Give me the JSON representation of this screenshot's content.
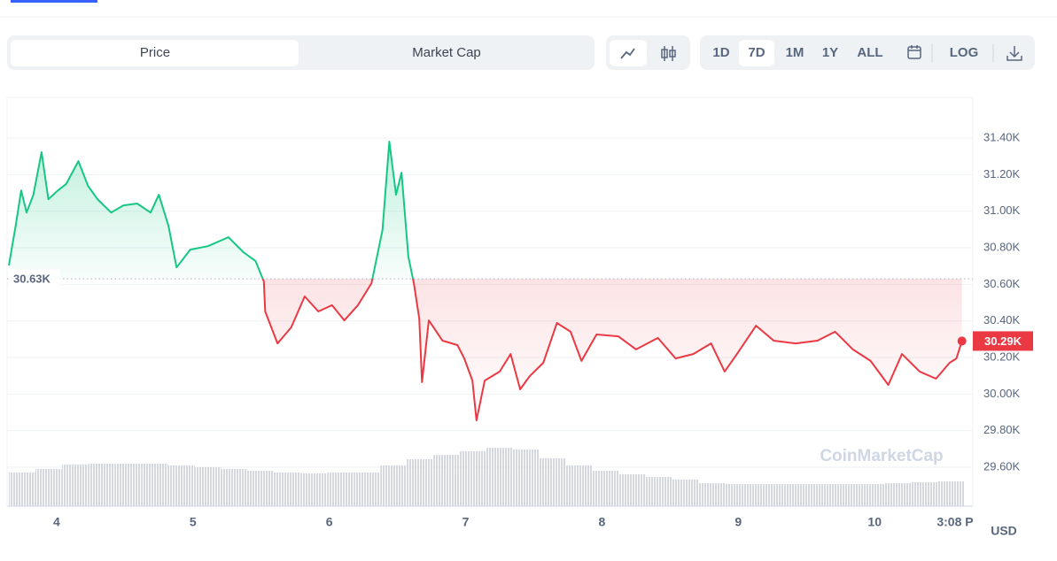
{
  "tabs": [
    "Price",
    "Market Cap"
  ],
  "active_tab": 0,
  "timeframes": [
    "1D",
    "7D",
    "1M",
    "1Y",
    "ALL"
  ],
  "active_timeframe": 1,
  "scale_toggle": "LOG",
  "watermark": "CoinMarketCap",
  "currency": "USD",
  "chart_data": {
    "type": "line",
    "x": [
      3.65,
      3.7,
      3.74,
      3.78,
      3.83,
      3.89,
      3.94,
      4.01,
      4.07,
      4.16,
      4.23,
      4.3,
      4.4,
      4.49,
      4.59,
      4.69,
      4.75,
      4.82,
      4.88,
      4.98,
      5.11,
      5.26,
      5.37,
      5.46,
      5.52,
      5.53,
      5.62,
      5.72,
      5.82,
      5.92,
      6.02,
      6.11,
      6.21,
      6.31,
      6.39,
      6.44,
      6.49,
      6.53,
      6.58,
      6.62,
      6.66,
      6.68,
      6.73,
      6.83,
      6.94,
      6.99,
      7.05,
      7.08,
      7.14,
      7.25,
      7.33,
      7.4,
      7.47,
      7.57,
      7.67,
      7.77,
      7.85,
      7.96,
      8.12,
      8.25,
      8.41,
      8.54,
      8.67,
      8.8,
      8.9,
      8.99,
      9.13,
      9.26,
      9.42,
      9.58,
      9.71,
      9.84,
      9.97,
      10.1,
      10.2,
      10.33,
      10.45,
      10.55,
      10.6,
      10.64
    ],
    "values": [
      30703,
      30921,
      31114,
      30993,
      31090,
      31323,
      31066,
      31114,
      31148,
      31274,
      31139,
      31066,
      30993,
      31032,
      31042,
      30993,
      31090,
      30921,
      30693,
      30790,
      30809,
      30858,
      30776,
      30727,
      30616,
      30452,
      30277,
      30364,
      30534,
      30452,
      30486,
      30403,
      30486,
      30606,
      30897,
      31381,
      31090,
      31211,
      30752,
      30606,
      30413,
      30065,
      30403,
      30292,
      30268,
      30195,
      30074,
      29856,
      30074,
      30123,
      30219,
      30026,
      30098,
      30171,
      30389,
      30341,
      30181,
      30326,
      30316,
      30244,
      30307,
      30195,
      30219,
      30277,
      30123,
      30219,
      30374,
      30292,
      30277,
      30292,
      30341,
      30244,
      30181,
      30050,
      30219,
      30123,
      30084,
      30171,
      30195,
      30290
    ],
    "up_color": "#16c784",
    "down_color": "#ea3943",
    "baseline": {
      "value": 30630,
      "label": "30.63K"
    },
    "current": {
      "value": 30290,
      "label": "30.29K"
    },
    "xlim": [
      3.65,
      10.72
    ],
    "xticks": [
      4,
      5,
      6,
      7,
      8,
      9,
      10,
      {
        "value": 10.59,
        "label": "3:08 P"
      }
    ],
    "ylim": [
      29387,
      31623
    ],
    "yticks": [
      {
        "value": 29600,
        "label": "29.60K"
      },
      {
        "value": 29800,
        "label": "29.80K"
      },
      {
        "value": 30000,
        "label": "30.00K"
      },
      {
        "value": 30200,
        "label": "30.20K"
      },
      {
        "value": 30400,
        "label": "30.40K"
      },
      {
        "value": 30600,
        "label": "30.60K"
      },
      {
        "value": 30800,
        "label": "30.80K"
      },
      {
        "value": 31000,
        "label": "31.00K"
      },
      {
        "value": 31200,
        "label": "31.20K"
      },
      {
        "value": 31400,
        "label": "31.40K"
      }
    ],
    "grid": true,
    "volume": {
      "color": "#d5d9df",
      "ylim": [
        0,
        100
      ],
      "values": [
        38,
        42,
        47,
        48,
        48,
        48,
        46,
        44,
        42,
        40,
        38,
        37,
        38,
        38,
        46,
        53,
        58,
        62,
        66,
        64,
        54,
        46,
        40,
        36,
        33,
        30,
        26,
        25,
        25,
        25,
        25,
        25,
        25,
        26,
        27,
        28
      ]
    }
  }
}
